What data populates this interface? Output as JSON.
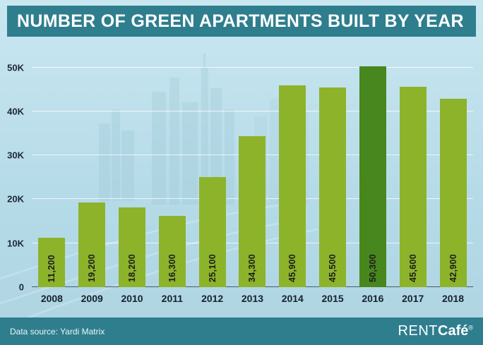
{
  "header": {
    "title": "NUMBER OF GREEN APARTMENTS BUILT BY YEAR"
  },
  "chart_data": {
    "type": "bar",
    "title": "NUMBER OF GREEN APARTMENTS BUILT BY YEAR",
    "categories": [
      "2008",
      "2009",
      "2010",
      "2011",
      "2012",
      "2013",
      "2014",
      "2015",
      "2016",
      "2017",
      "2018"
    ],
    "values": [
      11200,
      19200,
      18200,
      16300,
      25100,
      34300,
      45900,
      45500,
      50300,
      45600,
      42900
    ],
    "value_labels": [
      "11,200",
      "19,200",
      "18,200",
      "16,300",
      "25,100",
      "34,300",
      "45,900",
      "45,500",
      "50,300",
      "45,600",
      "42,900"
    ],
    "ylim": [
      0,
      53000
    ],
    "yticks": [
      {
        "value": 0,
        "label": "0"
      },
      {
        "value": 10000,
        "label": "10K"
      },
      {
        "value": 20000,
        "label": "20K"
      },
      {
        "value": 30000,
        "label": "30K"
      },
      {
        "value": 40000,
        "label": "40K"
      },
      {
        "value": 50000,
        "label": "50K"
      }
    ],
    "grid": true,
    "legend": "none",
    "bar_color": "#8db32a",
    "highlight_color": "#47871d",
    "highlight_index": 8,
    "xlabel": "",
    "ylabel": ""
  },
  "footer": {
    "source": "Data source: Yardi Matrix",
    "brand_prefix": "RENT",
    "brand_suffix": "Café",
    "registered": "®"
  }
}
